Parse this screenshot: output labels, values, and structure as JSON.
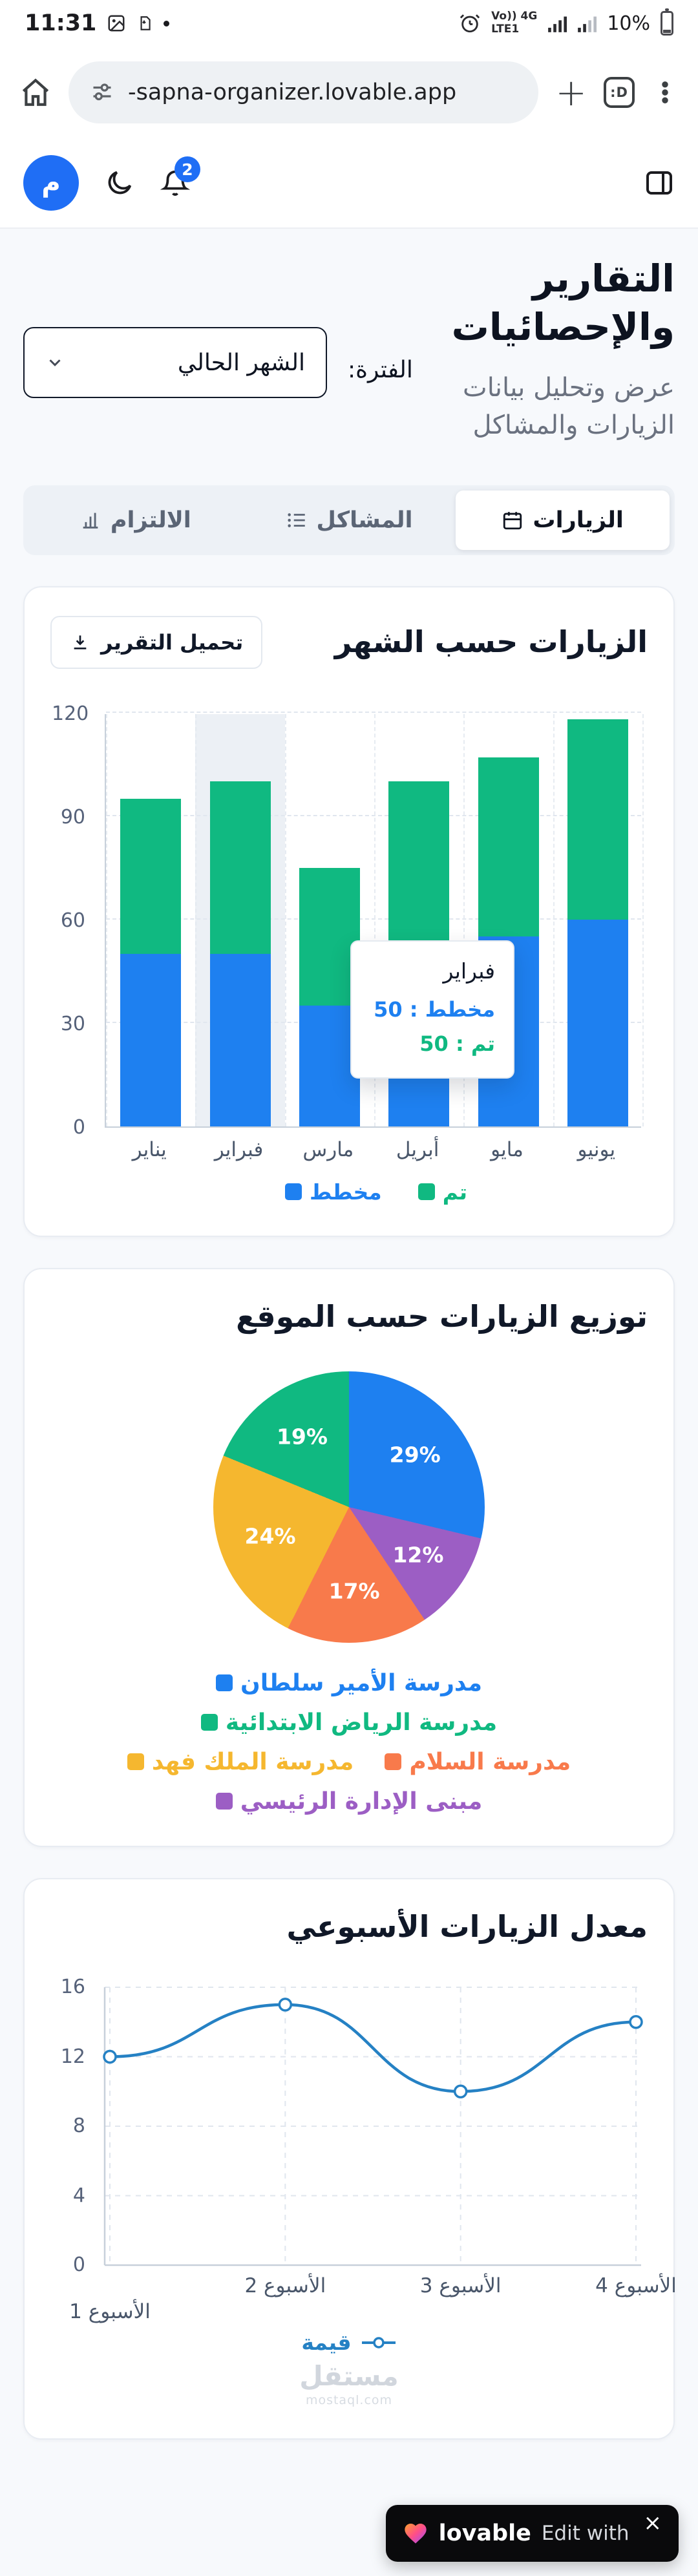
{
  "status_bar": {
    "time": "11:31",
    "carrier_line1": "Vo)) 4G",
    "carrier_line2": "LTE1",
    "battery_percent": "10%"
  },
  "browser": {
    "url": "-sapna-organizer.lovable.app",
    "plus_glyph": "+",
    "tab_badge": ":D"
  },
  "app_bar": {
    "avatar_letter": "م",
    "notification_count": "2"
  },
  "page_header": {
    "title": "التقارير والإحصائيات",
    "subtitle": "عرض وتحليل بيانات الزيارات والمشاكل",
    "period_label": "الفترة:",
    "period_value": "الشهر الحالي"
  },
  "tabs": [
    {
      "label": "الزيارات",
      "active": true
    },
    {
      "label": "المشاكل",
      "active": false
    },
    {
      "label": "الالتزام",
      "active": false
    }
  ],
  "monthly_card": {
    "title": "الزيارات حسب الشهر",
    "download_label": "تحميل التقرير"
  },
  "distribution_card": {
    "title": "توزيع الزيارات حسب الموقع"
  },
  "weekly_card": {
    "title": "معدل الزيارات الأسبوعي"
  },
  "watermark": {
    "name": "مستقل",
    "domain": "mostaql.com"
  },
  "lovable_badge": {
    "brand": "lovable",
    "text": "Edit with",
    "close_glyph": "×"
  },
  "colors": {
    "primary_blue": "#1e80f0",
    "teal": "#10b981",
    "amber": "#f5b72f",
    "orange": "#f87a4b",
    "purple": "#9c5ec4",
    "line_blue": "#2581c4"
  },
  "chart_data": [
    {
      "type": "bar",
      "title": "الزيارات حسب الشهر",
      "stacked": true,
      "categories": [
        "يناير",
        "فبراير",
        "مارس",
        "أبريل",
        "مايو",
        "يونيو"
      ],
      "series": [
        {
          "name": "مخطط",
          "color": "#1e80f0",
          "values": [
            50,
            50,
            35,
            45,
            55,
            60
          ]
        },
        {
          "name": "تم",
          "color": "#10b981",
          "values": [
            45,
            50,
            40,
            55,
            52,
            58
          ]
        }
      ],
      "ylim": [
        0,
        120
      ],
      "yticks": [
        0,
        30,
        60,
        90,
        120
      ],
      "grid": true,
      "legend_position": "bottom",
      "highlighted_category": "فبراير",
      "tooltip": {
        "category": "فبراير",
        "rows": [
          {
            "name": "مخطط",
            "value": 50,
            "color": "#1e80f0"
          },
          {
            "name": "تم",
            "value": 50,
            "color": "#10b981"
          }
        ]
      }
    },
    {
      "type": "pie",
      "title": "توزيع الزيارات حسب الموقع",
      "label_format": "percent",
      "slices": [
        {
          "label": "مدرسة الأمير سلطان",
          "value": 29,
          "color": "#1e80f0"
        },
        {
          "label": "مبنى الإدارة الرئيسي",
          "value": 12,
          "color": "#9c5ec4"
        },
        {
          "label": "مدرسة السلام",
          "value": 17,
          "color": "#f87a4b"
        },
        {
          "label": "مدرسة الملك فهد",
          "value": 24,
          "color": "#f5b72f"
        },
        {
          "label": "مدرسة الرياض الابتدائية",
          "value": 19,
          "color": "#10b981"
        }
      ],
      "legend_rows": [
        [
          0
        ],
        [
          4
        ],
        [
          3,
          2
        ],
        [
          1
        ]
      ]
    },
    {
      "type": "line",
      "title": "معدل الزيارات الأسبوعي",
      "categories": [
        "الأسبوع 1",
        "الأسبوع 2",
        "الأسبوع 3",
        "الأسبوع 4"
      ],
      "series": [
        {
          "name": "قيمة",
          "color": "#2581c4",
          "values": [
            12,
            15,
            10,
            14
          ]
        }
      ],
      "ylim": [
        0,
        16
      ],
      "yticks": [
        0,
        4,
        8,
        12,
        16
      ],
      "grid": true,
      "legend_position": "bottom"
    }
  ]
}
